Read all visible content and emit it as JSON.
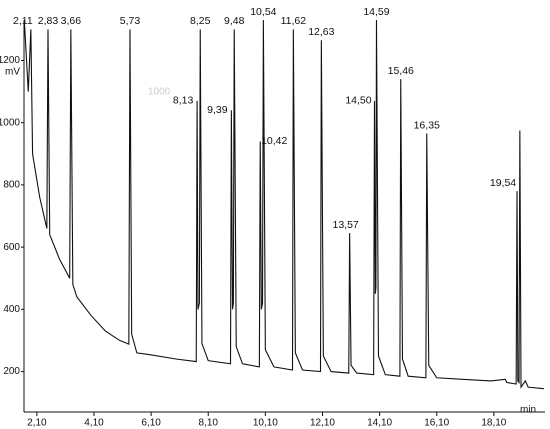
{
  "chart_data": {
    "type": "line",
    "y_unit": "mV",
    "x_unit": "min",
    "watermark": "1000",
    "xlim": [
      1.65,
      19.89
    ],
    "ylim": [
      70,
      1330
    ],
    "xticks": [
      {
        "value": 2.1,
        "label": "2,10"
      },
      {
        "value": 4.1,
        "label": "4,10"
      },
      {
        "value": 6.1,
        "label": "6,10"
      },
      {
        "value": 8.1,
        "label": "8,10"
      },
      {
        "value": 10.1,
        "label": "10,10"
      },
      {
        "value": 12.1,
        "label": "12,10"
      },
      {
        "value": 14.1,
        "label": "14,10"
      },
      {
        "value": 16.1,
        "label": "16,10"
      },
      {
        "value": 18.1,
        "label": "18,10"
      }
    ],
    "yticks": [
      200,
      400,
      600,
      800,
      1000,
      1200
    ],
    "series": [
      {
        "color": "#111111",
        "x": [
          1.66,
          1.8,
          1.89,
          1.95,
          2.2,
          2.45,
          2.49,
          2.55,
          2.9,
          3.25,
          3.29,
          3.36,
          3.5,
          4.0,
          4.5,
          5.0,
          5.32,
          5.36,
          5.42,
          5.6,
          6.0,
          7.0,
          7.68,
          7.71,
          7.74,
          7.79,
          7.82,
          7.88,
          8.1,
          8.88,
          8.91,
          8.95,
          8.98,
          9.01,
          9.08,
          9.3,
          9.89,
          9.92,
          9.96,
          10.0,
          10.03,
          10.1,
          10.4,
          11.05,
          11.08,
          11.15,
          11.4,
          12.03,
          12.06,
          12.13,
          12.4,
          13.02,
          13.05,
          13.1,
          13.3,
          13.89,
          13.92,
          13.95,
          13.97,
          13.99,
          14.06,
          14.3,
          14.81,
          14.84,
          14.9,
          15.1,
          15.72,
          15.75,
          15.82,
          16.1,
          17.0,
          18.0,
          18.5,
          18.55,
          18.88,
          18.91,
          18.94,
          18.98,
          19.01,
          19.05,
          19.2,
          19.3,
          19.85
        ],
        "values": [
          1330,
          1100,
          1300,
          900,
          760,
          660,
          1300,
          640,
          560,
          500,
          1300,
          480,
          440,
          380,
          330,
          300,
          288,
          1300,
          320,
          260,
          255,
          240,
          232,
          1070,
          400,
          420,
          1300,
          290,
          235,
          225,
          1040,
          400,
          420,
          1300,
          280,
          225,
          215,
          940,
          400,
          420,
          1330,
          270,
          215,
          205,
          1300,
          260,
          205,
          200,
          1265,
          250,
          200,
          195,
          645,
          220,
          195,
          190,
          1070,
          450,
          470,
          1330,
          250,
          190,
          185,
          1140,
          240,
          185,
          180,
          965,
          220,
          180,
          175,
          170,
          175,
          165,
          160,
          780,
          170,
          165,
          975,
          150,
          170,
          150,
          145
        ]
      }
    ],
    "peaks": [
      {
        "label": "2,11",
        "x": 1.89,
        "y": 1300
      },
      {
        "label": "2,83",
        "x": 2.49,
        "y": 1300
      },
      {
        "label": "3,66",
        "x": 3.29,
        "y": 1300
      },
      {
        "label": "5,73",
        "x": 5.36,
        "y": 1300
      },
      {
        "label": "8,13",
        "x": 7.71,
        "y": 1070
      },
      {
        "label": "8,25",
        "x": 7.82,
        "y": 1300
      },
      {
        "label": "9,39",
        "x": 8.91,
        "y": 1040
      },
      {
        "label": "9,48",
        "x": 9.01,
        "y": 1300
      },
      {
        "label": "10,42",
        "x": 9.92,
        "y": 940
      },
      {
        "label": "10,54",
        "x": 10.03,
        "y": 1330
      },
      {
        "label": "11,62",
        "x": 11.08,
        "y": 1300
      },
      {
        "label": "12,63",
        "x": 12.06,
        "y": 1265
      },
      {
        "label": "13,57",
        "x": 13.05,
        "y": 645
      },
      {
        "label": "14,50",
        "x": 13.92,
        "y": 1070
      },
      {
        "label": "14,59",
        "x": 13.99,
        "y": 1330
      },
      {
        "label": "15,46",
        "x": 14.84,
        "y": 1140
      },
      {
        "label": "16,35",
        "x": 15.75,
        "y": 965
      },
      {
        "label": "19,54",
        "x": 18.91,
        "y": 780
      }
    ]
  }
}
